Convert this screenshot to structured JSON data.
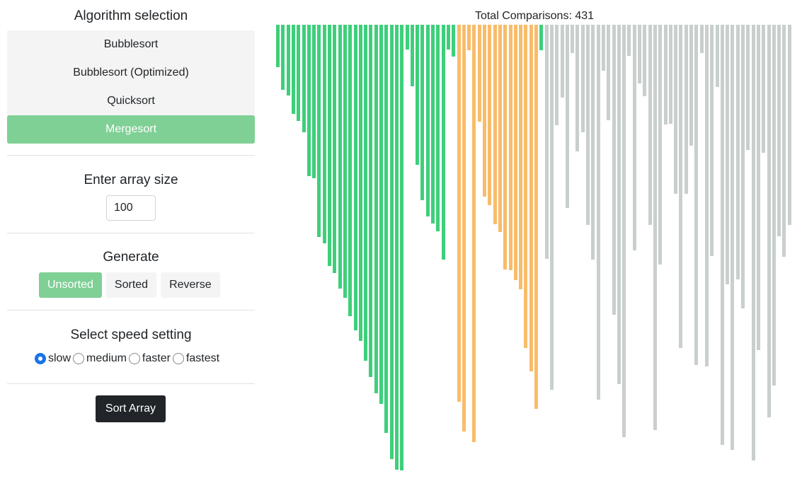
{
  "sidebar": {
    "algorithm_title": "Algorithm selection",
    "algorithms": [
      {
        "label": "Bubblesort",
        "active": false
      },
      {
        "label": "Bubblesort (Optimized)",
        "active": false
      },
      {
        "label": "Quicksort",
        "active": false
      },
      {
        "label": "Mergesort",
        "active": true
      }
    ],
    "size_title": "Enter array size",
    "size_value": "100",
    "generate_title": "Generate",
    "generate_buttons": [
      {
        "label": "Unsorted",
        "active": true
      },
      {
        "label": "Sorted",
        "active": false
      },
      {
        "label": "Reverse",
        "active": false
      }
    ],
    "speed_title": "Select speed setting",
    "speeds": [
      {
        "label": "slow",
        "checked": true
      },
      {
        "label": "medium",
        "checked": false
      },
      {
        "label": "faster",
        "checked": false
      },
      {
        "label": "fastest",
        "checked": false
      }
    ],
    "sort_button": "Sort Array"
  },
  "visualizer": {
    "comparisons_text": "Total Comparisons: 431",
    "max_value": 630,
    "colors": {
      "sorted": "#3ecf7a",
      "active": "#f8bc6a",
      "unsorted": "#c8cfcc"
    },
    "bars": [
      {
        "v": 60,
        "s": "sorted"
      },
      {
        "v": 92,
        "s": "sorted"
      },
      {
        "v": 100,
        "s": "sorted"
      },
      {
        "v": 126,
        "s": "sorted"
      },
      {
        "v": 136,
        "s": "sorted"
      },
      {
        "v": 152,
        "s": "sorted"
      },
      {
        "v": 213,
        "s": "sorted"
      },
      {
        "v": 216,
        "s": "sorted"
      },
      {
        "v": 299,
        "s": "sorted"
      },
      {
        "v": 308,
        "s": "sorted"
      },
      {
        "v": 340,
        "s": "sorted"
      },
      {
        "v": 350,
        "s": "sorted"
      },
      {
        "v": 372,
        "s": "sorted"
      },
      {
        "v": 385,
        "s": "sorted"
      },
      {
        "v": 411,
        "s": "sorted"
      },
      {
        "v": 431,
        "s": "sorted"
      },
      {
        "v": 446,
        "s": "sorted"
      },
      {
        "v": 473,
        "s": "sorted"
      },
      {
        "v": 496,
        "s": "sorted"
      },
      {
        "v": 519,
        "s": "sorted"
      },
      {
        "v": 534,
        "s": "sorted"
      },
      {
        "v": 575,
        "s": "sorted"
      },
      {
        "v": 612,
        "s": "sorted"
      },
      {
        "v": 627,
        "s": "sorted"
      },
      {
        "v": 628,
        "s": "sorted"
      },
      {
        "v": 35,
        "s": "sorted"
      },
      {
        "v": 87,
        "s": "sorted"
      },
      {
        "v": 197,
        "s": "sorted"
      },
      {
        "v": 247,
        "s": "sorted"
      },
      {
        "v": 270,
        "s": "sorted"
      },
      {
        "v": 280,
        "s": "sorted"
      },
      {
        "v": 291,
        "s": "sorted"
      },
      {
        "v": 331,
        "s": "sorted"
      },
      {
        "v": 35,
        "s": "sorted"
      },
      {
        "v": 45,
        "s": "sorted"
      },
      {
        "v": 531,
        "s": "active"
      },
      {
        "v": 573,
        "s": "active"
      },
      {
        "v": 36,
        "s": "active"
      },
      {
        "v": 588,
        "s": "active"
      },
      {
        "v": 137,
        "s": "active"
      },
      {
        "v": 242,
        "s": "active"
      },
      {
        "v": 254,
        "s": "active"
      },
      {
        "v": 281,
        "s": "active"
      },
      {
        "v": 292,
        "s": "active"
      },
      {
        "v": 345,
        "s": "active"
      },
      {
        "v": 346,
        "s": "active"
      },
      {
        "v": 360,
        "s": "active"
      },
      {
        "v": 373,
        "s": "active"
      },
      {
        "v": 456,
        "s": "active"
      },
      {
        "v": 488,
        "s": "active"
      },
      {
        "v": 541,
        "s": "active"
      },
      {
        "v": 36,
        "s": "sorted"
      },
      {
        "v": 330,
        "s": "unsorted"
      },
      {
        "v": 514,
        "s": "unsorted"
      },
      {
        "v": 142,
        "s": "unsorted"
      },
      {
        "v": 103,
        "s": "unsorted"
      },
      {
        "v": 258,
        "s": "unsorted"
      },
      {
        "v": 40,
        "s": "unsorted"
      },
      {
        "v": 178,
        "s": "unsorted"
      },
      {
        "v": 152,
        "s": "unsorted"
      },
      {
        "v": 282,
        "s": "unsorted"
      },
      {
        "v": 331,
        "s": "unsorted"
      },
      {
        "v": 528,
        "s": "unsorted"
      },
      {
        "v": 65,
        "s": "unsorted"
      },
      {
        "v": 135,
        "s": "unsorted"
      },
      {
        "v": 409,
        "s": "unsorted"
      },
      {
        "v": 506,
        "s": "unsorted"
      },
      {
        "v": 581,
        "s": "unsorted"
      },
      {
        "v": 44,
        "s": "unsorted"
      },
      {
        "v": 318,
        "s": "unsorted"
      },
      {
        "v": 83,
        "s": "unsorted"
      },
      {
        "v": 101,
        "s": "unsorted"
      },
      {
        "v": 282,
        "s": "unsorted"
      },
      {
        "v": 571,
        "s": "unsorted"
      },
      {
        "v": 338,
        "s": "unsorted"
      },
      {
        "v": 141,
        "s": "unsorted"
      },
      {
        "v": 140,
        "s": "unsorted"
      },
      {
        "v": 238,
        "s": "unsorted"
      },
      {
        "v": 456,
        "s": "unsorted"
      },
      {
        "v": 238,
        "s": "unsorted"
      },
      {
        "v": 170,
        "s": "unsorted"
      },
      {
        "v": 479,
        "s": "unsorted"
      },
      {
        "v": 40,
        "s": "unsorted"
      },
      {
        "v": 481,
        "s": "unsorted"
      },
      {
        "v": 326,
        "s": "unsorted"
      },
      {
        "v": 88,
        "s": "unsorted"
      },
      {
        "v": 592,
        "s": "unsorted"
      },
      {
        "v": 366,
        "s": "unsorted"
      },
      {
        "v": 599,
        "s": "unsorted"
      },
      {
        "v": 359,
        "s": "unsorted"
      },
      {
        "v": 400,
        "s": "unsorted"
      },
      {
        "v": 176,
        "s": "unsorted"
      },
      {
        "v": 614,
        "s": "unsorted"
      },
      {
        "v": 459,
        "s": "unsorted"
      },
      {
        "v": 180,
        "s": "unsorted"
      },
      {
        "v": 553,
        "s": "unsorted"
      },
      {
        "v": 508,
        "s": "unsorted"
      },
      {
        "v": 298,
        "s": "unsorted"
      },
      {
        "v": 327,
        "s": "unsorted"
      },
      {
        "v": 282,
        "s": "unsorted"
      }
    ]
  }
}
